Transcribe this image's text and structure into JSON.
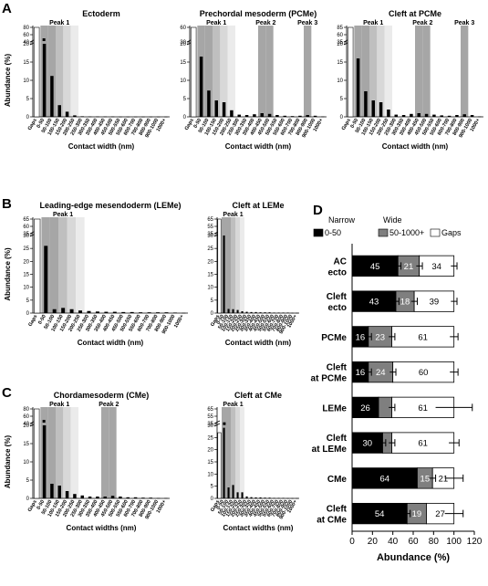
{
  "panels": {
    "A": "A",
    "B": "B",
    "C": "C",
    "D": "D"
  },
  "peak_labels": {
    "peak1": "Peak 1",
    "peak2": "Peak 2",
    "peak3": "Peak 3"
  },
  "colors": {
    "bar": "#000000",
    "shade_dark": "#a6a6a6",
    "shade_mid": "#bfbfbf",
    "shade_light": "#d8d8d8",
    "shade_lighter": "#ebebeb",
    "narrow": "#000000",
    "wide": "#7f7f7f",
    "gaps": "#ffffff"
  },
  "chart_data": [
    {
      "id": "ectoderm",
      "panel": "A",
      "type": "bar",
      "title": "Ectoderm",
      "xlabel": "Contact width (nm)",
      "ylabel": "Abundance (%)",
      "categories": [
        "Gaps",
        "0-50",
        "50-100",
        "100-150",
        "150-200",
        "200-250",
        "250-300",
        "300-350",
        "350-400",
        "400-450",
        "450-500",
        "500-550",
        "550-600",
        "600-700",
        "700-800",
        "800-900",
        "900-1000",
        "1000+"
      ],
      "values": [
        60,
        20.5,
        11.2,
        3.2,
        1.4,
        0.4,
        0.15,
        0.1,
        0.1,
        0.1,
        0.1,
        0.05,
        0.05,
        0.05,
        0.05,
        0.05,
        0.05,
        0.05
      ],
      "axis_break": {
        "lower": [
          0,
          20
        ],
        "upper_ticks": [
          40,
          60,
          80
        ]
      },
      "y_ticks": [
        0,
        5,
        10,
        15,
        20
      ],
      "peaks": [
        {
          "label": "Peak 1",
          "from": 1,
          "to": 5
        }
      ],
      "dagger_marks": [
        1
      ]
    },
    {
      "id": "pcme",
      "panel": "A",
      "type": "bar",
      "title": "Prechordal mesoderm (PCMe)",
      "xlabel": "Contact width (nm)",
      "ylabel": "",
      "categories": [
        "Gaps",
        "0-50",
        "50-100",
        "100-150",
        "150-200",
        "200-250",
        "250-300",
        "300-350",
        "350-400",
        "400-450",
        "450-500",
        "500-550",
        "550-600",
        "600-700",
        "700-800",
        "800-900",
        "900-1000",
        "1000+"
      ],
      "values": [
        60,
        16.5,
        7.2,
        4.5,
        4.0,
        1.8,
        0.6,
        0.5,
        0.7,
        1.0,
        0.8,
        0.5,
        0.3,
        0.2,
        0.3,
        0.5,
        0.3,
        0.1
      ],
      "axis_break": {
        "lower": [
          0,
          20
        ],
        "upper_ticks": [
          30,
          60
        ]
      },
      "y_ticks": [
        0,
        5,
        10,
        15,
        20
      ],
      "peaks": [
        {
          "label": "Peak 1",
          "from": 1,
          "to": 5
        },
        {
          "label": "Peak 2",
          "from": 9,
          "to": 10
        },
        {
          "label": "Peak 3",
          "from": 15,
          "to": 15
        }
      ]
    },
    {
      "id": "cleft_pcme",
      "panel": "A",
      "type": "bar",
      "title": "Cleft at PCMe",
      "xlabel": "Contact width (nm)",
      "ylabel": "",
      "categories": [
        "Gaps",
        "0-50",
        "50-100",
        "100-150",
        "150-200",
        "200-250",
        "250-300",
        "300-350",
        "350-400",
        "400-450",
        "450-500",
        "500-550",
        "550-600",
        "600-700",
        "700-800",
        "800-900",
        "900-1000",
        "1000+"
      ],
      "values": [
        60,
        16.0,
        7.0,
        4.5,
        4.0,
        2.0,
        0.6,
        0.5,
        0.8,
        1.0,
        0.8,
        0.6,
        0.4,
        0.3,
        0.5,
        0.7,
        0.5,
        0.1
      ],
      "axis_break": {
        "lower": [
          0,
          20
        ],
        "upper_ticks": [
          35,
          60,
          85
        ]
      },
      "y_ticks": [
        0,
        5,
        10,
        15,
        20
      ],
      "peaks": [
        {
          "label": "Peak 1",
          "from": 1,
          "to": 5
        },
        {
          "label": "Peak 2",
          "from": 9,
          "to": 10
        },
        {
          "label": "Peak 3",
          "from": 15,
          "to": 15
        }
      ]
    },
    {
      "id": "leme",
      "panel": "B",
      "type": "bar",
      "title": "Leading-edge mesendoderm (LEMe)",
      "xlabel": "Contact width (nm)",
      "ylabel": "Abundance (%)",
      "categories": [
        "Gaps",
        "0-50",
        "50-100",
        "100-150",
        "150-200",
        "200-250",
        "250-300",
        "300-350",
        "350-400",
        "400-450",
        "450-500",
        "500-550",
        "550-600",
        "600-700",
        "700-800",
        "800-900",
        "900-1000",
        "1000+"
      ],
      "values": [
        60,
        26.0,
        1.5,
        2.0,
        1.5,
        1.0,
        0.8,
        0.6,
        0.5,
        0.5,
        0.4,
        0.4,
        0.3,
        0.3,
        0.3,
        0.3,
        0.2,
        0.1
      ],
      "axis_break": {
        "lower": [
          0,
          30
        ],
        "upper_ticks": [
          35,
          60,
          65
        ]
      },
      "y_ticks": [
        0,
        5,
        10,
        15,
        20,
        25,
        30
      ],
      "peaks": [
        {
          "label": "Peak 1",
          "from": 1,
          "to": 5
        }
      ]
    },
    {
      "id": "cleft_leme",
      "panel": "B",
      "type": "bar",
      "title": "Cleft at LEMe",
      "xlabel": "Contact width (nm)",
      "ylabel": "",
      "categories": [
        "Gaps",
        "0-50",
        "50-100",
        "100-150",
        "150-200",
        "200-250",
        "250-300",
        "300-350",
        "350-400",
        "400-450",
        "450-500",
        "500-550",
        "550-600",
        "600-700",
        "700-800",
        "800-900",
        "900-1000",
        "1000+"
      ],
      "values": [
        61,
        30.0,
        1.6,
        1.5,
        1.2,
        0.7,
        0.5,
        0.4,
        0.4,
        0.3,
        0.3,
        0.3,
        0.2,
        0.2,
        0.2,
        0.2,
        0.1,
        0.1
      ],
      "axis_break": {
        "lower": [
          0,
          30
        ],
        "upper_ticks": [
          35,
          55,
          65
        ]
      },
      "y_ticks": [
        0,
        5,
        10,
        15,
        20,
        25,
        30
      ],
      "peaks": [
        {
          "label": "Peak 1",
          "from": 1,
          "to": 5
        }
      ]
    },
    {
      "id": "cme",
      "panel": "C",
      "type": "bar",
      "title": "Chordamesoderm (CMe)",
      "xlabel": "Contact widths (nm)",
      "ylabel": "Abundance (%)",
      "categories": [
        "Gaps",
        "0-50",
        "50-100",
        "100-150",
        "150-200",
        "200-250",
        "250-300",
        "300-350",
        "350-400",
        "400-450",
        "450-500",
        "500-550",
        "550-600",
        "600-700",
        "700-800",
        "800-900",
        "900-1000",
        "1000+"
      ],
      "values": [
        21,
        20.0,
        4.0,
        3.5,
        2.0,
        1.2,
        0.8,
        0.5,
        0.5,
        0.5,
        0.7,
        0.5,
        0.3,
        0.3,
        0.2,
        0.2,
        0.1,
        0.1
      ],
      "axis_break": {
        "lower": [
          0,
          20
        ],
        "upper_ticks": [
          40,
          60,
          80
        ]
      },
      "y_ticks": [
        0,
        5,
        10,
        15,
        20
      ],
      "peaks": [
        {
          "label": "Peak 1",
          "from": 1,
          "to": 5
        },
        {
          "label": "Peak 2",
          "from": 9,
          "to": 10
        }
      ],
      "dagger_marks": [
        1
      ]
    },
    {
      "id": "cleft_cme",
      "panel": "C",
      "type": "bar",
      "title": "Cleft at CMe",
      "xlabel": "Contact widths (nm)",
      "ylabel": "",
      "categories": [
        "Gaps",
        "0-50",
        "50-100",
        "100-150",
        "150-200",
        "200-250",
        "250-300",
        "300-350",
        "350-400",
        "400-450",
        "450-500",
        "500-550",
        "550-600",
        "600-700",
        "700-800",
        "800-900",
        "900-1000",
        "1000+"
      ],
      "values": [
        27,
        29.0,
        4.5,
        5.5,
        2.5,
        2.5,
        0.8,
        0.5,
        0.4,
        0.4,
        0.3,
        0.3,
        0.2,
        0.2,
        0.2,
        0.1,
        0.1,
        0.1
      ],
      "axis_break": {
        "lower": [
          0,
          30
        ],
        "upper_ticks": [
          35,
          55,
          65
        ]
      },
      "y_ticks": [
        0,
        5,
        10,
        15,
        20,
        25,
        30
      ],
      "peaks": [
        {
          "label": "Peak 1",
          "from": 1,
          "to": 5
        }
      ],
      "dagger_marks": [
        1
      ]
    },
    {
      "id": "abundance_stacked",
      "panel": "D",
      "type": "bar",
      "orientation": "horizontal",
      "stacked": true,
      "title": "",
      "xlabel": "Abundance (%)",
      "ylabel": "",
      "legend": {
        "narrow_header": "Narrow",
        "wide_header": "Wide",
        "position": "top"
      },
      "x_ticks": [
        0,
        20,
        40,
        60,
        80,
        100,
        120
      ],
      "xlim": [
        0,
        120
      ],
      "categories": [
        "AC\necto",
        "Cleft\necto",
        "PCMe",
        "Cleft\nat PCMe",
        "LEMe",
        "Cleft\nat LEMe",
        "CMe",
        "Cleft\nat CMe"
      ],
      "series": [
        {
          "name": "0-50",
          "values": [
            45,
            43,
            16,
            16,
            26,
            30,
            64,
            54
          ],
          "labels": [
            "45",
            "43",
            "16",
            "16",
            "26",
            "30",
            "64",
            "54"
          ]
        },
        {
          "name": "50-1000+",
          "values": [
            21,
            18,
            23,
            24,
            13,
            9,
            15,
            19
          ],
          "labels": [
            "21",
            "18",
            "23",
            "24",
            "",
            "",
            "15",
            "19"
          ]
        },
        {
          "name": "Gaps",
          "values": [
            34,
            39,
            61,
            60,
            61,
            61,
            21,
            27
          ],
          "labels": [
            "34",
            "39",
            "61",
            "60",
            "61",
            "61",
            "21",
            "27"
          ]
        }
      ],
      "error": {
        "narrow": [
          3,
          3,
          3,
          3,
          0,
          3,
          0,
          3
        ],
        "wide": [
          3,
          3,
          3,
          3,
          3,
          3,
          3,
          0
        ],
        "total": [
          3,
          3,
          4,
          4,
          18,
          5,
          9,
          9
        ]
      }
    }
  ]
}
